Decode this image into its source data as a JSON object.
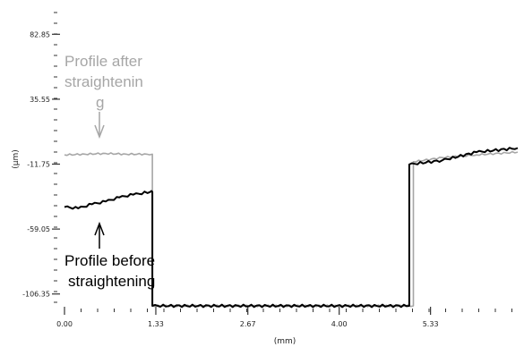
{
  "chart_data": {
    "type": "line",
    "xlabel": "(mm)",
    "ylabel": "(µm)",
    "x_ticks": [
      "0.00",
      "1.33",
      "2.67",
      "4.00",
      "5.33"
    ],
    "y_ticks": [
      "82.85",
      "35.55",
      "-11.75",
      "-59.05",
      "-106.35"
    ],
    "xlim": [
      0,
      6.6
    ],
    "ylim": [
      -115,
      100
    ],
    "grid": false,
    "series": [
      {
        "name": "Profile after straightening",
        "color": "#a6a6a6",
        "points": [
          [
            0,
            -5
          ],
          [
            0.3,
            -4.5
          ],
          [
            0.6,
            -4
          ],
          [
            0.9,
            -4.5
          ],
          [
            1.2,
            -4.5
          ],
          [
            1.28,
            -4.5
          ],
          [
            1.28,
            -115
          ],
          [
            5.08,
            -115
          ],
          [
            5.08,
            -10
          ],
          [
            5.5,
            -7
          ],
          [
            6.0,
            -5
          ],
          [
            6.6,
            -3
          ]
        ]
      },
      {
        "name": "Profile before straightening",
        "color": "#000000",
        "points": [
          [
            0,
            -43
          ],
          [
            0.2,
            -44
          ],
          [
            0.4,
            -41
          ],
          [
            0.6,
            -39
          ],
          [
            0.8,
            -36
          ],
          [
            1.0,
            -34
          ],
          [
            1.25,
            -32
          ],
          [
            1.28,
            -32
          ],
          [
            1.28,
            -115
          ],
          [
            5.02,
            -115
          ],
          [
            5.02,
            -12
          ],
          [
            5.5,
            -9
          ],
          [
            6.0,
            -3
          ],
          [
            6.6,
            0
          ]
        ]
      }
    ],
    "annotations": {
      "after": [
        "Profile after",
        "straightenin",
        "g"
      ],
      "before": [
        "Profile before",
        "straightening"
      ]
    }
  }
}
